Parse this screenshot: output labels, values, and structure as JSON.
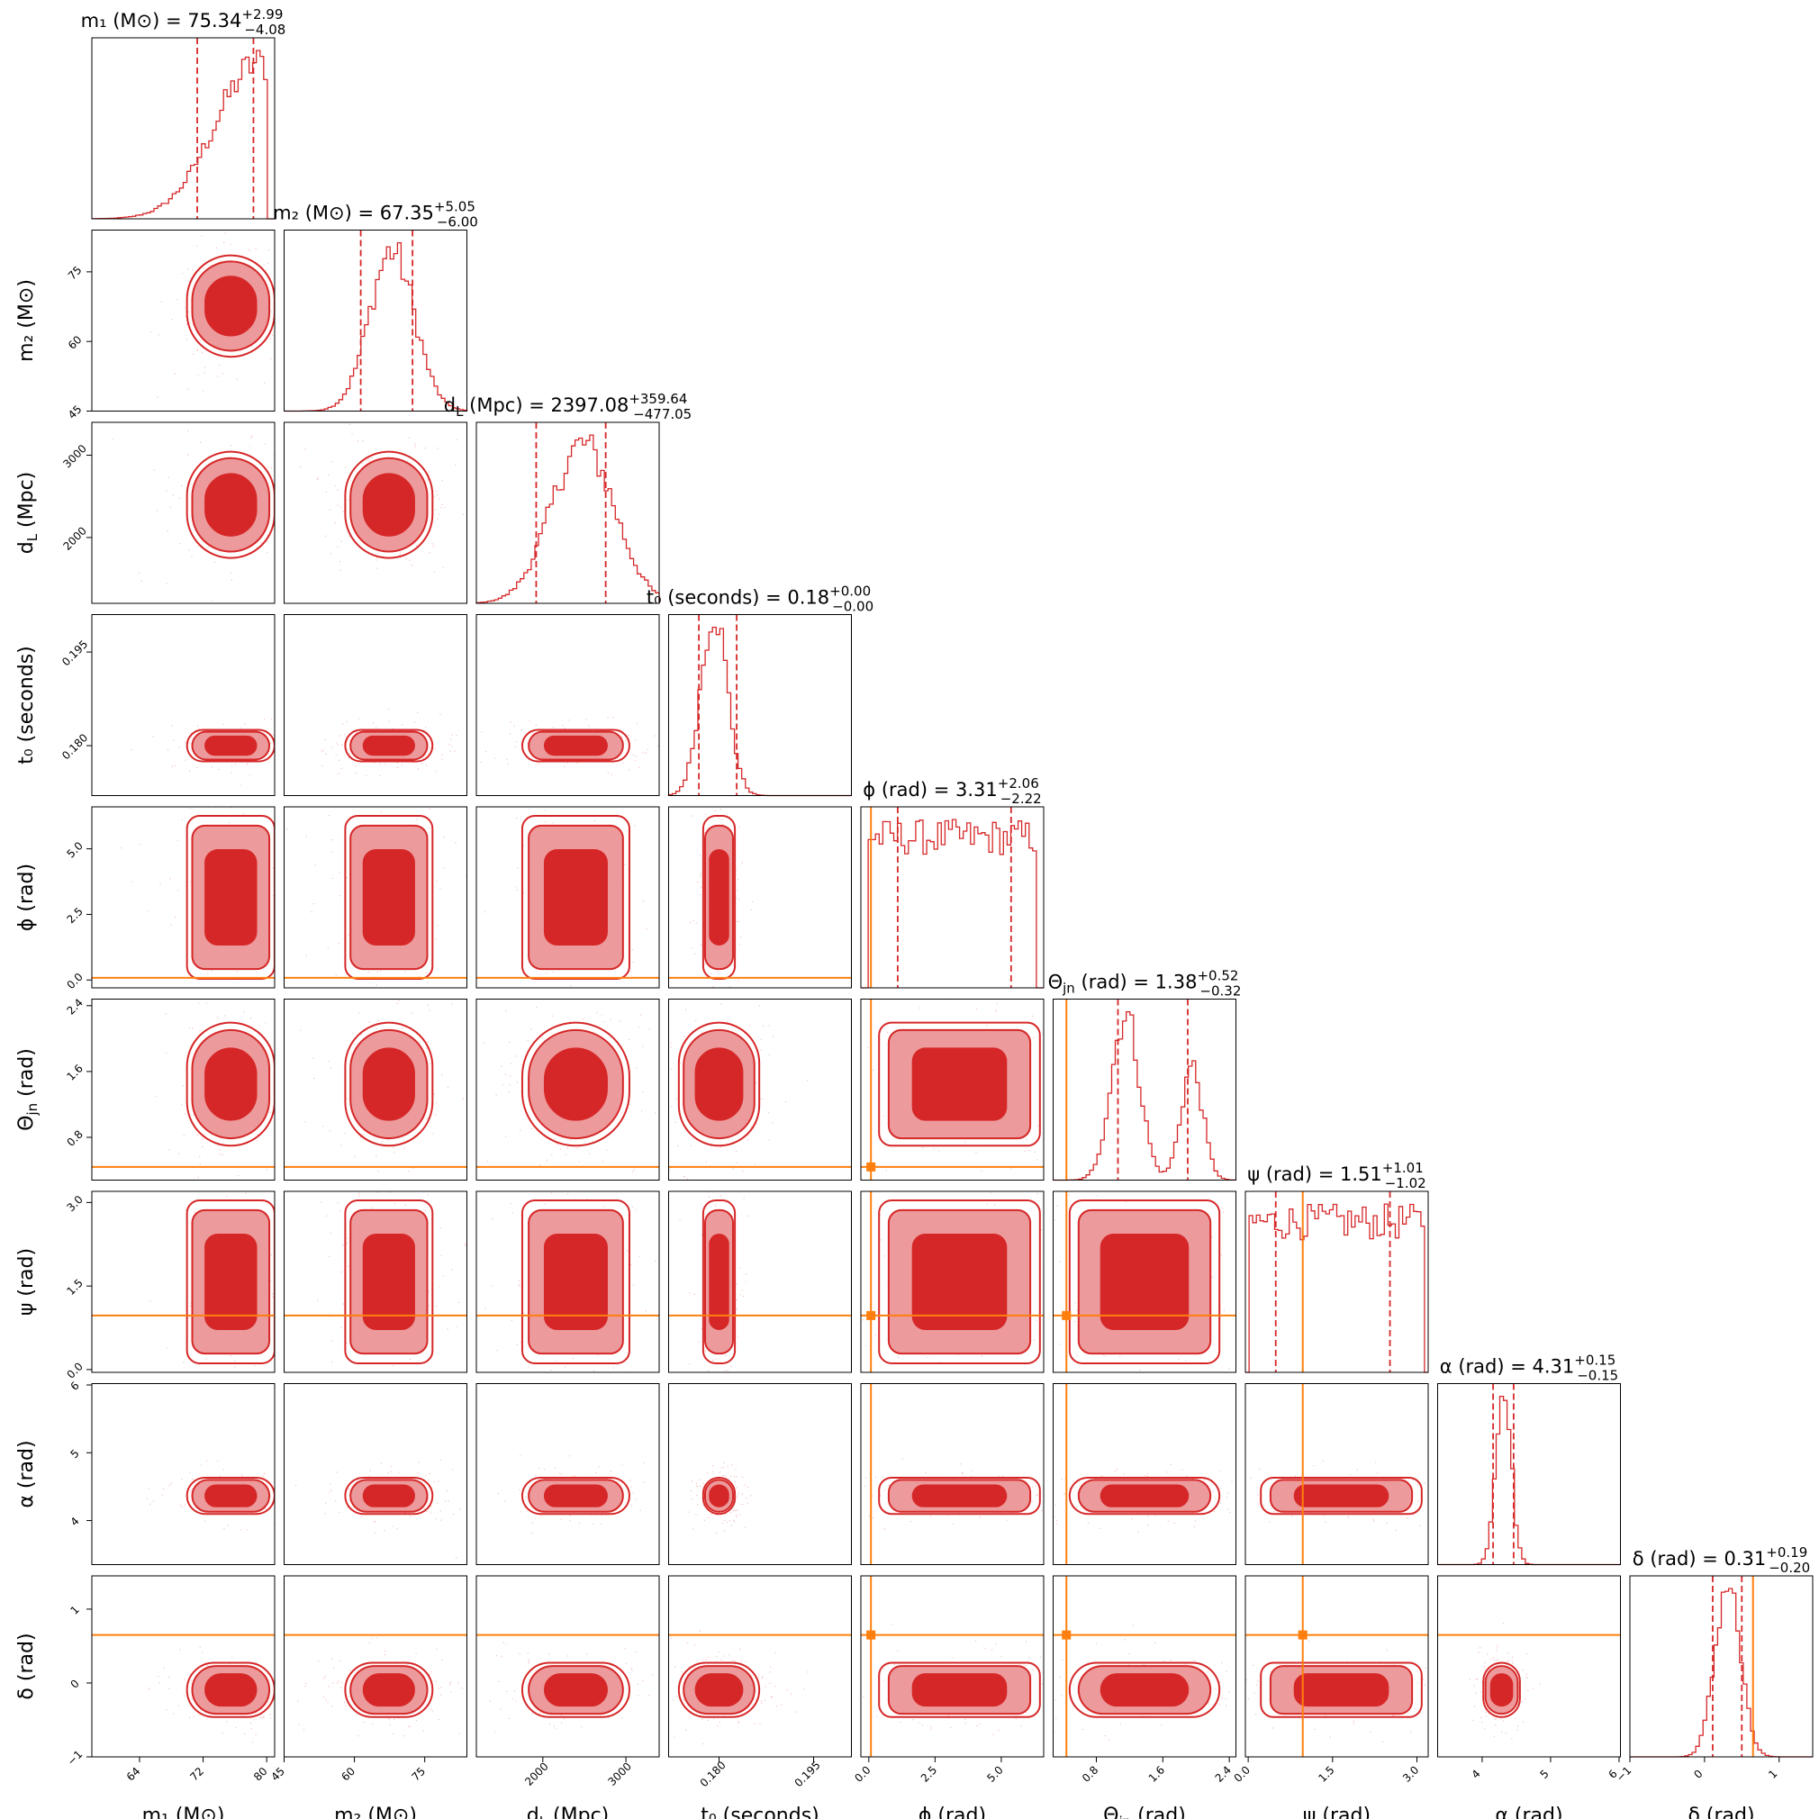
{
  "chart_data": {
    "type": "corner",
    "colors": {
      "posterior": "#d62728",
      "posterior_light": "#ec9a9b",
      "truth": "#ff7f0e"
    },
    "params": [
      {
        "key": "m1",
        "label": "m₁ (M⊙)",
        "title_name": "m₁ (M⊙)",
        "median": "75.34",
        "plus": "+2.99",
        "minus": "−4.08",
        "range": [
          58,
          81
        ],
        "ticks": [
          64,
          72,
          80
        ],
        "tick_labels": [
          "64",
          "72",
          "80"
        ],
        "q_lo": 71.26,
        "q_hi": 78.33,
        "truth": null
      },
      {
        "key": "m2",
        "label": "m₂ (M⊙)",
        "title_name": "m₂ (M⊙)",
        "median": "67.35",
        "plus": "+5.05",
        "minus": "−6.00",
        "range": [
          45,
          84
        ],
        "ticks": [
          45,
          60,
          75
        ],
        "tick_labels": [
          "45",
          "60",
          "75"
        ],
        "q_lo": 61.35,
        "q_hi": 72.4,
        "truth": null
      },
      {
        "key": "dL",
        "label": "d_L (Mpc)",
        "title_name": "d_L (Mpc)",
        "median": "2397.08",
        "plus": "+359.64",
        "minus": "−477.05",
        "range": [
          1200,
          3400
        ],
        "ticks": [
          2000,
          3000
        ],
        "tick_labels": [
          "2000",
          "3000"
        ],
        "q_lo": 1920.03,
        "q_hi": 2756.72,
        "truth": null
      },
      {
        "key": "t0",
        "label": "t₀ (seconds)",
        "title_name": "t₀ (seconds)",
        "median": "0.18",
        "plus": "+0.00",
        "minus": "−0.00",
        "range": [
          0.172,
          0.201
        ],
        "ticks": [
          0.18,
          0.195
        ],
        "tick_labels": [
          "0.180",
          "0.195"
        ],
        "q_lo": 0.1768,
        "q_hi": 0.1828,
        "truth": null
      },
      {
        "key": "phi",
        "label": "ϕ (rad)",
        "title_name": "ϕ (rad)",
        "median": "3.31",
        "plus": "+2.06",
        "minus": "−2.22",
        "range": [
          -0.3,
          6.6
        ],
        "ticks": [
          0.0,
          2.5,
          5.0
        ],
        "tick_labels": [
          "0.0",
          "2.5",
          "5.0"
        ],
        "q_lo": 1.09,
        "q_hi": 5.37,
        "truth": 0.08
      },
      {
        "key": "theta",
        "label": "Θ_jn (rad)",
        "title_name": "Θ_jn (rad)",
        "median": "1.38",
        "plus": "+0.52",
        "minus": "−0.32",
        "range": [
          0.28,
          2.48
        ],
        "ticks": [
          0.8,
          1.6,
          2.4
        ],
        "tick_labels": [
          "0.8",
          "1.6",
          "2.4"
        ],
        "q_lo": 1.06,
        "q_hi": 1.9,
        "truth": 0.44
      },
      {
        "key": "psi",
        "label": "ψ (rad)",
        "title_name": "ψ (rad)",
        "median": "1.51",
        "plus": "+1.01",
        "minus": "−1.02",
        "range": [
          -0.05,
          3.2
        ],
        "ticks": [
          0.0,
          1.5,
          3.0
        ],
        "tick_labels": [
          "0.0",
          "1.5",
          "3.0"
        ],
        "q_lo": 0.49,
        "q_hi": 2.52,
        "truth": 0.97
      },
      {
        "key": "alpha",
        "label": "α (rad)",
        "title_name": "α (rad)",
        "median": "4.31",
        "plus": "+0.15",
        "minus": "−0.15",
        "range": [
          3.35,
          6.02
        ],
        "ticks": [
          4,
          5,
          6
        ],
        "tick_labels": [
          "4",
          "5",
          "6"
        ],
        "q_lo": 4.16,
        "q_hi": 4.46,
        "truth": null
      },
      {
        "key": "delta",
        "label": "δ (rad)",
        "title_name": "δ (rad)",
        "median": "0.31",
        "plus": "+0.19",
        "minus": "−0.20",
        "range": [
          -1.0,
          1.45
        ],
        "ticks": [
          -1,
          0,
          1
        ],
        "tick_labels": [
          "−1",
          "0",
          "1"
        ],
        "q_lo": 0.11,
        "q_hi": 0.5,
        "truth": 0.65
      }
    ],
    "marginal_shapes": {
      "m1": "skewed-left rising to peak near 79, sharp drop at 80",
      "m2": "peak near 68",
      "dL": "peak near 2500",
      "t0": "peak near 0.179",
      "phi": "approximately flat",
      "theta": "bimodal peaks near 1.15 and 1.95",
      "psi": "approximately flat",
      "alpha": "narrow peak near 4.31",
      "delta": "peak near 0.31"
    }
  }
}
